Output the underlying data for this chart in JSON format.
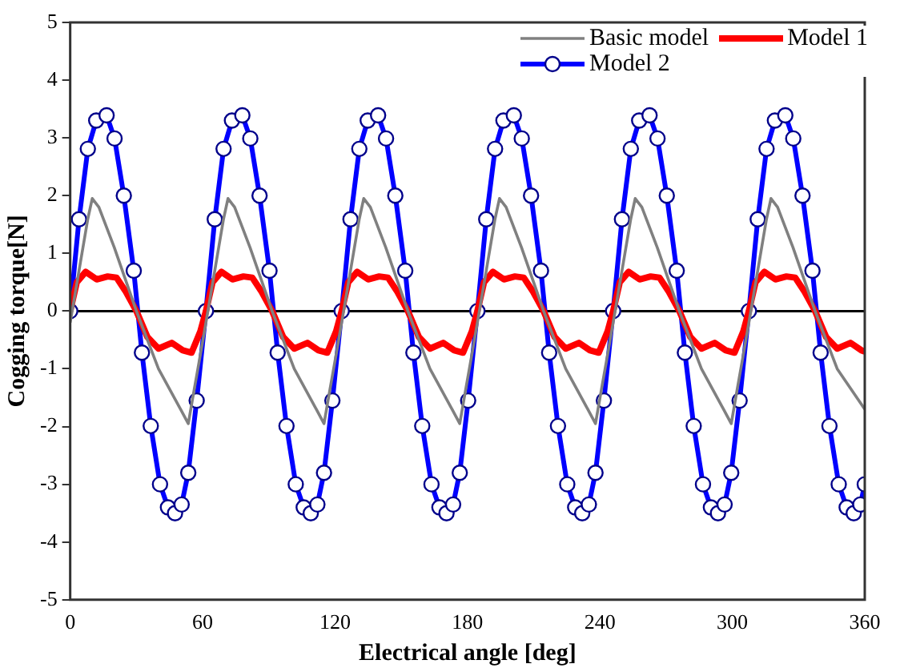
{
  "chart_data": {
    "type": "line",
    "xlabel": "Electrical angle [deg]",
    "ylabel": "Cogging torque[N]",
    "xlim": [
      0,
      360
    ],
    "xticks": [
      0,
      60,
      120,
      180,
      240,
      300,
      360
    ],
    "ylim": [
      -5,
      5
    ],
    "yticks": [
      -5,
      -4,
      -3,
      -2,
      -1,
      0,
      1,
      2,
      3,
      4,
      5
    ],
    "grid": false,
    "legend": "top right",
    "line_style": "solid",
    "ref_lines": [
      {
        "axis": "y",
        "value": 0,
        "color": "#000000"
      }
    ],
    "series": [
      {
        "name": "Basic model",
        "color": "#808080",
        "marker": "none",
        "x": [
          0,
          4,
          8,
          10,
          13,
          20,
          30,
          40,
          50,
          53.5,
          56,
          59,
          61.5,
          65.5,
          69.5,
          71.5,
          74.5,
          81.5,
          91.5,
          101.5,
          111.5,
          115,
          117.5,
          120.5,
          123,
          127,
          131,
          133,
          136,
          143,
          153,
          163,
          173,
          176.5,
          179,
          182,
          184.5,
          188.5,
          192.5,
          194.5,
          197.5,
          204.5,
          214.5,
          224.5,
          234.5,
          238,
          240.5,
          243.5,
          246,
          250,
          254,
          256,
          259,
          266,
          276,
          286,
          296,
          299.5,
          302,
          305,
          307.5,
          311.5,
          315.5,
          317.5,
          320.5,
          327.5,
          337.5,
          347.5,
          360
        ],
        "values": [
          -0.2,
          0.7,
          1.6,
          1.95,
          1.8,
          1.1,
          0,
          -1,
          -1.7,
          -1.95,
          -1.4,
          -0.75,
          -0.2,
          0.7,
          1.6,
          1.95,
          1.8,
          1.1,
          0,
          -1,
          -1.7,
          -1.95,
          -1.4,
          -0.75,
          -0.2,
          0.7,
          1.6,
          1.95,
          1.8,
          1.1,
          0,
          -1,
          -1.7,
          -1.95,
          -1.4,
          -0.75,
          -0.2,
          0.7,
          1.6,
          1.95,
          1.8,
          1.1,
          0,
          -1,
          -1.7,
          -1.95,
          -1.4,
          -0.75,
          -0.2,
          0.7,
          1.6,
          1.95,
          1.8,
          1.1,
          0,
          -1,
          -1.7,
          -1.95,
          -1.4,
          -0.75,
          -0.2,
          0.7,
          1.6,
          1.95,
          1.8,
          1.1,
          0,
          -1,
          -1.7
        ]
      },
      {
        "name": "Model 1",
        "color": "#ff0000",
        "marker": "none",
        "x": [
          0,
          3,
          7,
          12,
          17,
          21,
          25,
          30,
          35,
          40,
          46,
          51,
          55,
          59,
          61.5,
          64.5,
          68.5,
          73.5,
          78.5,
          82.5,
          86.5,
          91.5,
          96.5,
          101.5,
          107.5,
          112.5,
          116.5,
          120.5,
          123,
          126,
          130,
          135,
          140,
          144,
          148,
          153,
          158,
          163,
          169,
          174,
          178,
          182,
          184.5,
          187.5,
          191.5,
          196.5,
          201.5,
          205.5,
          209.5,
          214.5,
          219.5,
          224.5,
          230.5,
          235.5,
          239.5,
          243.5,
          246,
          249,
          253,
          258,
          263,
          267,
          271,
          276,
          281,
          286,
          292,
          297,
          301,
          305,
          307.5,
          310.5,
          314.5,
          319.5,
          324.5,
          328.5,
          332.5,
          337.5,
          342.5,
          347.5,
          353.5,
          358.5,
          360
        ],
        "values": [
          0,
          0.5,
          0.68,
          0.55,
          0.6,
          0.58,
          0.35,
          0,
          -0.45,
          -0.65,
          -0.55,
          -0.68,
          -0.72,
          -0.35,
          0,
          0.5,
          0.68,
          0.55,
          0.6,
          0.58,
          0.35,
          0,
          -0.45,
          -0.65,
          -0.55,
          -0.68,
          -0.72,
          -0.35,
          0,
          0.5,
          0.68,
          0.55,
          0.6,
          0.58,
          0.35,
          0,
          -0.45,
          -0.65,
          -0.55,
          -0.68,
          -0.72,
          -0.35,
          0,
          0.5,
          0.68,
          0.55,
          0.6,
          0.58,
          0.35,
          0,
          -0.45,
          -0.65,
          -0.55,
          -0.68,
          -0.72,
          -0.35,
          0,
          0.5,
          0.68,
          0.55,
          0.6,
          0.58,
          0.35,
          0,
          -0.45,
          -0.65,
          -0.55,
          -0.68,
          -0.72,
          -0.35,
          0,
          0.5,
          0.68,
          0.55,
          0.6,
          0.58,
          0.35,
          0,
          -0.45,
          -0.65,
          -0.55,
          -0.68,
          -0.7
        ]
      },
      {
        "name": "Model 2",
        "color": "#0000ff",
        "marker": "circle",
        "x": [
          0,
          4,
          8,
          11.8,
          16.5,
          20.1,
          24.3,
          28.8,
          32.5,
          36.5,
          40.7,
          44.3,
          47.5,
          50.5,
          53.5,
          57.3,
          61.5,
          65.5,
          69.5,
          73.3,
          78,
          81.6,
          85.8,
          90.3,
          94,
          98,
          102.2,
          105.8,
          109,
          112,
          115,
          118.8,
          123,
          127,
          131,
          134.8,
          139.5,
          143.1,
          147.3,
          151.8,
          155.5,
          159.5,
          163.7,
          167.3,
          170.5,
          173.5,
          176.5,
          180.3,
          184.5,
          188.5,
          192.5,
          196.3,
          201,
          204.6,
          208.8,
          213.3,
          217,
          221,
          225.2,
          228.8,
          232,
          235,
          238,
          241.8,
          246,
          250,
          254,
          257.8,
          262.5,
          266.1,
          270.3,
          274.8,
          278.5,
          282.5,
          286.7,
          290.3,
          293.5,
          296.5,
          299.5,
          303.3,
          307.5,
          311.5,
          315.5,
          319.3,
          324,
          327.6,
          331.8,
          336.3,
          340,
          344,
          348.2,
          351.8,
          355,
          358,
          360
        ],
        "values": [
          0,
          1.59,
          2.81,
          3.3,
          3.39,
          2.99,
          2,
          0.7,
          -0.72,
          -1.99,
          -3,
          -3.4,
          -3.5,
          -3.35,
          -2.8,
          -1.55,
          0,
          1.59,
          2.81,
          3.3,
          3.39,
          2.99,
          2,
          0.7,
          -0.72,
          -1.99,
          -3,
          -3.4,
          -3.5,
          -3.35,
          -2.8,
          -1.55,
          0,
          1.59,
          2.81,
          3.3,
          3.39,
          2.99,
          2,
          0.7,
          -0.72,
          -1.99,
          -3,
          -3.4,
          -3.5,
          -3.35,
          -2.8,
          -1.55,
          0,
          1.59,
          2.81,
          3.3,
          3.39,
          2.99,
          2,
          0.7,
          -0.72,
          -1.99,
          -3,
          -3.4,
          -3.5,
          -3.35,
          -2.8,
          -1.55,
          0,
          1.59,
          2.81,
          3.3,
          3.39,
          2.99,
          2,
          0.7,
          -0.72,
          -1.99,
          -3,
          -3.4,
          -3.5,
          -3.35,
          -2.8,
          -1.55,
          0,
          1.59,
          2.81,
          3.3,
          3.39,
          2.99,
          2,
          0.7,
          -0.72,
          -1.99,
          -3,
          -3.4,
          -3.5,
          -3.35,
          -3
        ]
      }
    ]
  }
}
